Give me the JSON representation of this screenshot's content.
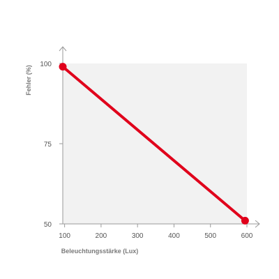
{
  "chart_data": {
    "type": "line",
    "title": "",
    "xlabel": "Beleuchtungsstärke (Lux)",
    "ylabel": "Fehler (%)",
    "x_ticks": [
      "100",
      "200",
      "300",
      "400",
      "500",
      "600"
    ],
    "y_ticks": [
      "50",
      "75",
      "100"
    ],
    "xlim": [
      95,
      600
    ],
    "ylim": [
      50,
      100
    ],
    "grid": false,
    "series": [
      {
        "x": [
          95,
          595
        ],
        "y": [
          99,
          51
        ],
        "color": "#e0001b"
      }
    ],
    "plot_background": "#f2f2f2",
    "axis_color": "#9a9a9a"
  }
}
